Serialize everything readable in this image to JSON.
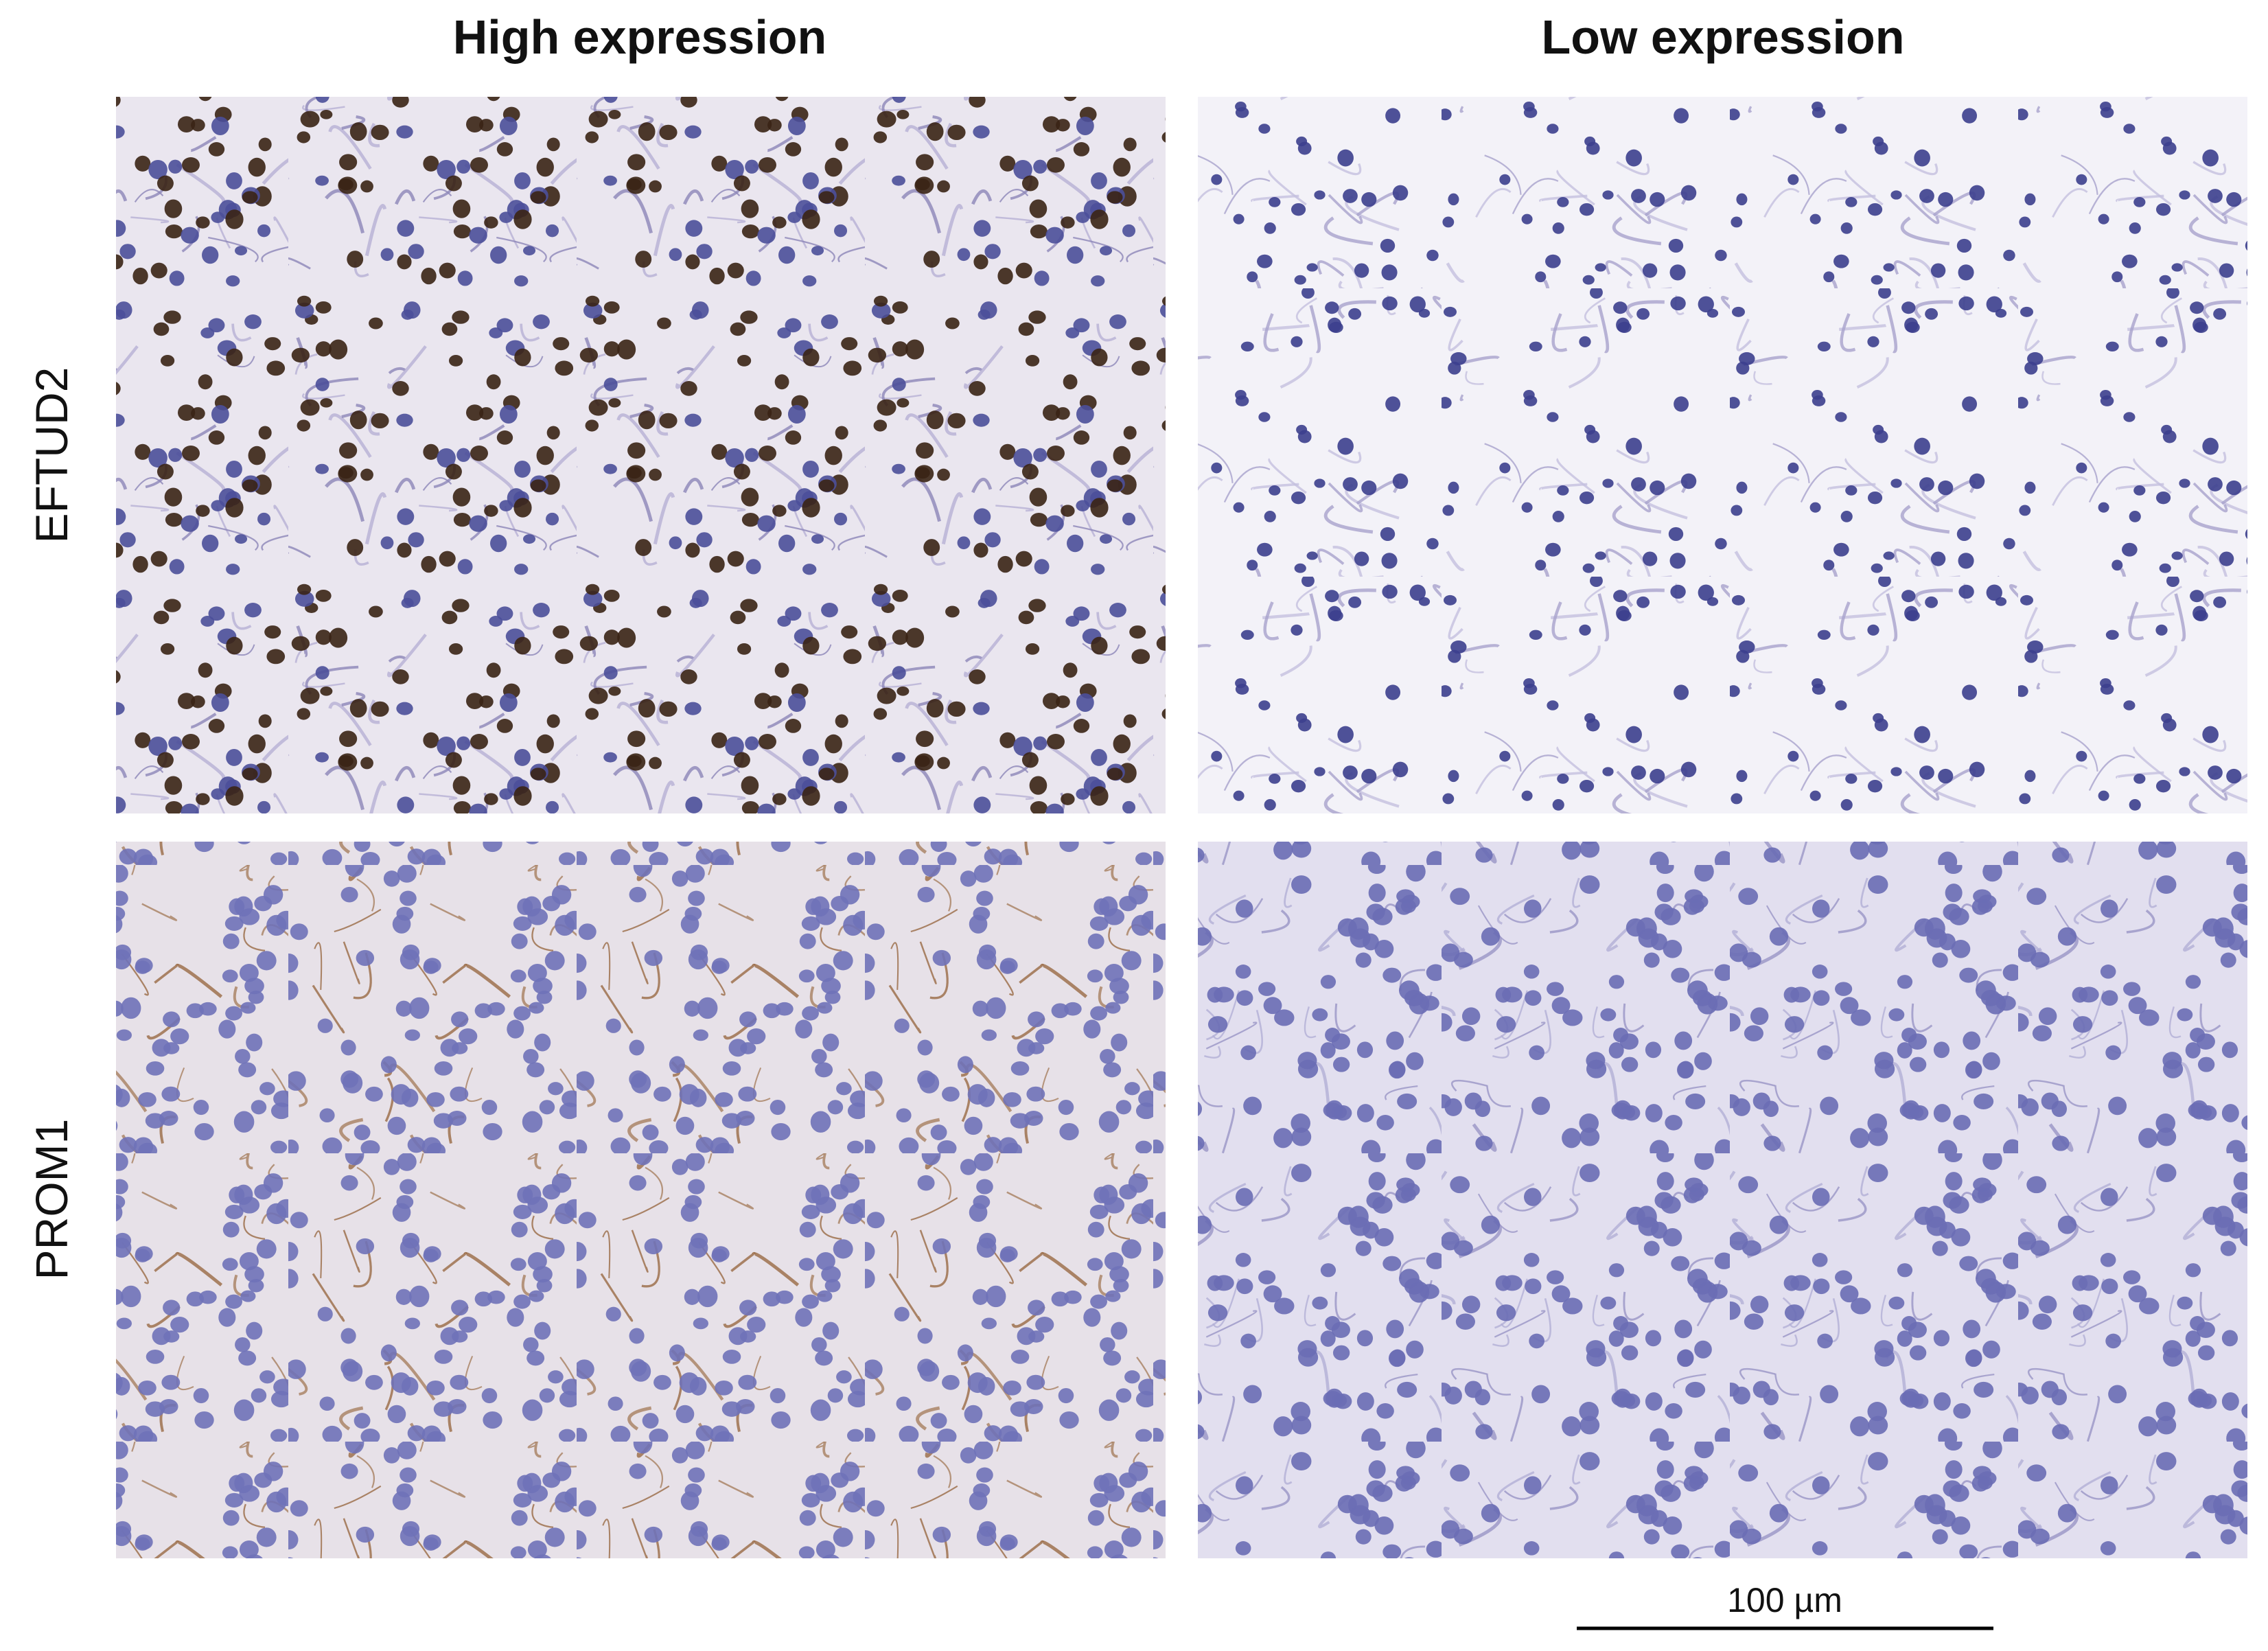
{
  "columns": [
    "High expression",
    "Low expression"
  ],
  "rows": [
    "EFTUD2",
    "PROM1"
  ],
  "scale_bar": {
    "label": "100 µm"
  }
}
